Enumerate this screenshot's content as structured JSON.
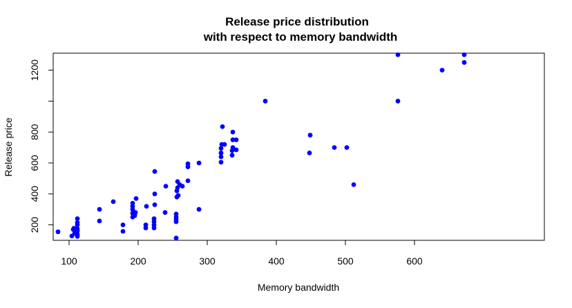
{
  "chart_data": {
    "type": "scatter",
    "title": [
      "Release price distribution",
      "with respect to memory bandwidth"
    ],
    "xlabel": "Memory bandwidth",
    "ylabel": "Release price",
    "xlim": [
      77,
      788
    ],
    "ylim": [
      100,
      1310
    ],
    "xticks": [
      100,
      200,
      300,
      400,
      500,
      600
    ],
    "yticks": [
      200,
      400,
      600,
      800,
      1000,
      1200
    ],
    "ytick_labels": [
      "200",
      "400",
      "600",
      "800",
      "",
      "1200"
    ],
    "grid": false,
    "point_color": "#0000ff",
    "points": [
      [
        84,
        155
      ],
      [
        104,
        128
      ],
      [
        106,
        170
      ],
      [
        107,
        178
      ],
      [
        108,
        145
      ],
      [
        110,
        150
      ],
      [
        112,
        125
      ],
      [
        112,
        140
      ],
      [
        112,
        160
      ],
      [
        112,
        175
      ],
      [
        112,
        200
      ],
      [
        112,
        215
      ],
      [
        112,
        240
      ],
      [
        144,
        225
      ],
      [
        144,
        300
      ],
      [
        164,
        350
      ],
      [
        178,
        158
      ],
      [
        178,
        200
      ],
      [
        192,
        250
      ],
      [
        192,
        275
      ],
      [
        192,
        300
      ],
      [
        192,
        320
      ],
      [
        192,
        340
      ],
      [
        195,
        260
      ],
      [
        196,
        280
      ],
      [
        197,
        370
      ],
      [
        211,
        180
      ],
      [
        211,
        200
      ],
      [
        212,
        320
      ],
      [
        223,
        180
      ],
      [
        223,
        200
      ],
      [
        223,
        220
      ],
      [
        223,
        240
      ],
      [
        224,
        330
      ],
      [
        224,
        400
      ],
      [
        224,
        545
      ],
      [
        239,
        280
      ],
      [
        240,
        450
      ],
      [
        255,
        115
      ],
      [
        255,
        220
      ],
      [
        255,
        235
      ],
      [
        255,
        250
      ],
      [
        255,
        270
      ],
      [
        256,
        380
      ],
      [
        256,
        420
      ],
      [
        257,
        440
      ],
      [
        257,
        480
      ],
      [
        258,
        390
      ],
      [
        260,
        460
      ],
      [
        264,
        450
      ],
      [
        272,
        485
      ],
      [
        272,
        575
      ],
      [
        272,
        595
      ],
      [
        288,
        600
      ],
      [
        288,
        300
      ],
      [
        320,
        605
      ],
      [
        320,
        640
      ],
      [
        320,
        665
      ],
      [
        320,
        695
      ],
      [
        321,
        720
      ],
      [
        322,
        835
      ],
      [
        325,
        720
      ],
      [
        336,
        650
      ],
      [
        336,
        680
      ],
      [
        337,
        700
      ],
      [
        337,
        750
      ],
      [
        337,
        800
      ],
      [
        342,
        685
      ],
      [
        342,
        750
      ],
      [
        384,
        1000
      ],
      [
        448,
        665
      ],
      [
        449,
        780
      ],
      [
        484,
        700
      ],
      [
        502,
        700
      ],
      [
        512,
        460
      ],
      [
        576,
        1000
      ],
      [
        576,
        1300
      ],
      [
        640,
        1200
      ],
      [
        672,
        1250
      ],
      [
        672,
        1300
      ]
    ]
  }
}
